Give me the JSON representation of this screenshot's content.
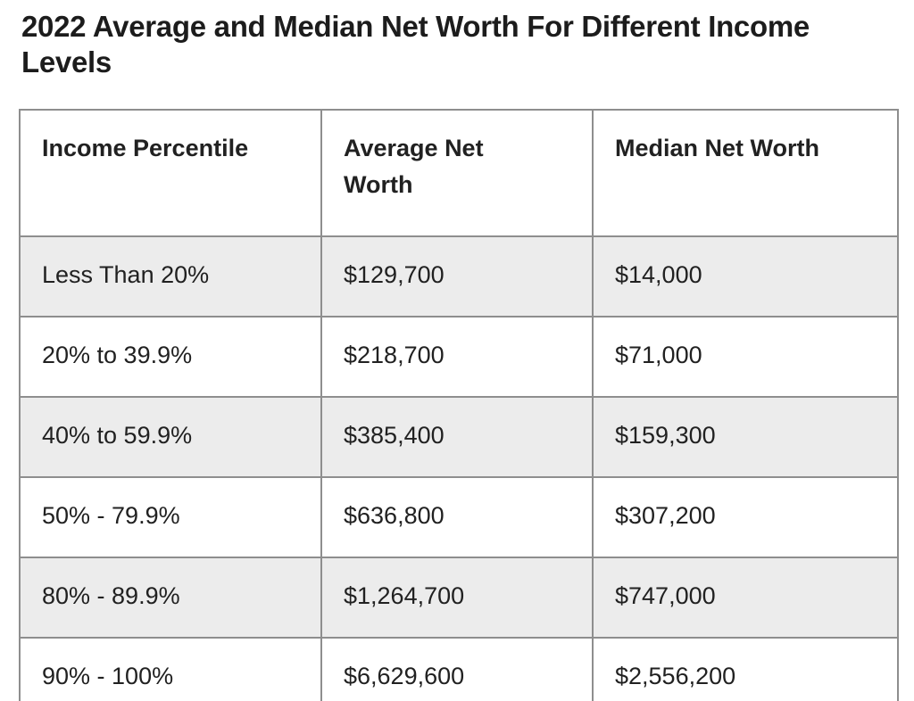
{
  "title": "2022 Average and Median Net Worth For Different Income Levels",
  "table": {
    "columns": [
      "Income Percentile",
      "Average Net Worth",
      "Median Net Worth"
    ],
    "rows": [
      {
        "percentile": "Less Than 20%",
        "average": "$129,700",
        "median": "$14,000"
      },
      {
        "percentile": "20% to 39.9%",
        "average": "$218,700",
        "median": "$71,000"
      },
      {
        "percentile": "40% to 59.9%",
        "average": "$385,400",
        "median": "$159,300"
      },
      {
        "percentile": "50% - 79.9%",
        "average": "$636,800",
        "median": "$307,200"
      },
      {
        "percentile": "80% - 89.9%",
        "average": "$1,264,700",
        "median": "$747,000"
      },
      {
        "percentile": "90% - 100%",
        "average": "$6,629,600",
        "median": "$2,556,200"
      }
    ],
    "colors": {
      "stripe_row_background": "#ececec",
      "plain_row_background": "#ffffff",
      "border": "#8e8e8e",
      "text": "#212121",
      "title_text": "#1c1c1c"
    }
  },
  "chart_data": {
    "type": "table",
    "title": "2022 Average and Median Net Worth For Different Income Levels",
    "columns": [
      "Income Percentile",
      "Average Net Worth",
      "Median Net Worth"
    ],
    "categories": [
      "Less Than 20%",
      "20% to 39.9%",
      "40% to 59.9%",
      "50% - 79.9%",
      "80% - 89.9%",
      "90% - 100%"
    ],
    "series": [
      {
        "name": "Average Net Worth",
        "values": [
          129700,
          218700,
          385400,
          636800,
          1264700,
          6629600
        ]
      },
      {
        "name": "Median Net Worth",
        "values": [
          14000,
          71000,
          159300,
          307200,
          747000,
          2556200
        ]
      }
    ],
    "layout": {
      "striped_rows": true,
      "header_row": true,
      "grid": true
    }
  }
}
